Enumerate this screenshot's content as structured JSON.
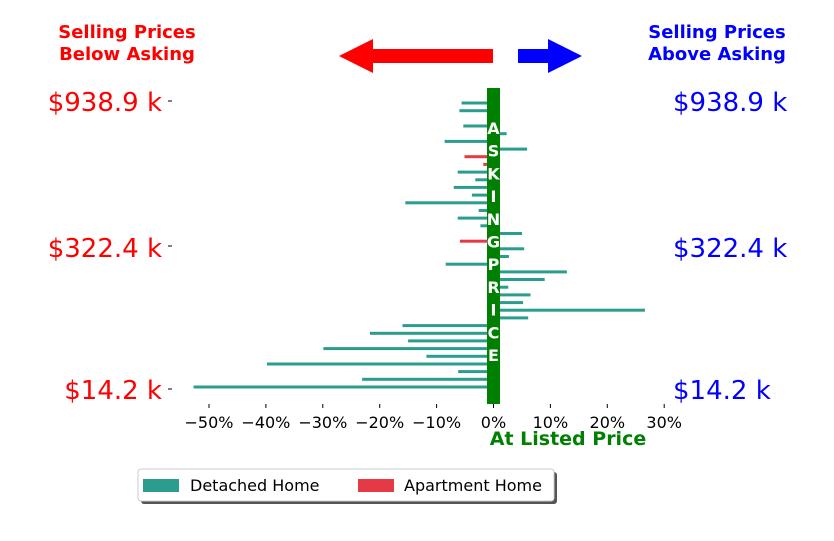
{
  "chart_data": {
    "type": "bar",
    "orientation": "horizontal",
    "header_left": [
      "Selling Prices",
      "Below Asking"
    ],
    "header_right": [
      "Selling Prices",
      "Above Asking"
    ],
    "center_label": "ASKING PRICE",
    "xlabel": "At Listed Price",
    "xlim": [
      -55,
      30
    ],
    "xticks": [
      -50,
      -40,
      -30,
      -20,
      -10,
      0,
      10,
      20,
      30
    ],
    "xtick_labels": [
      "−50%",
      "−40%",
      "−30%",
      "−20%",
      "−10%",
      "0%",
      "10%",
      "20%",
      "30%"
    ],
    "price_labels": [
      "$938.9 k",
      "$322.4 k",
      "$14.2 k"
    ],
    "legend": [
      "Detached Home",
      "Apartment Home"
    ],
    "legend_position": "bottom-left",
    "colors": {
      "detached": "#2a9d8f",
      "apartment": "#e63946",
      "asking": "#008000",
      "left": "#ff0000",
      "right": "#0000ff"
    },
    "bars": [
      {
        "type": "detached",
        "value": -5.6
      },
      {
        "type": "detached",
        "value": -6
      },
      {
        "type": "detached",
        "value": 0.5
      },
      {
        "type": "detached",
        "value": -5.3
      },
      {
        "type": "detached",
        "value": 2.3
      },
      {
        "type": "detached",
        "value": -8.6
      },
      {
        "type": "detached",
        "value": 5.9
      },
      {
        "type": "apartment",
        "value": -5.1
      },
      {
        "type": "apartment",
        "value": -1.8
      },
      {
        "type": "detached",
        "value": -6.3
      },
      {
        "type": "detached",
        "value": -3.2
      },
      {
        "type": "detached",
        "value": -7
      },
      {
        "type": "detached",
        "value": -3.8
      },
      {
        "type": "detached",
        "value": -15.5
      },
      {
        "type": "detached",
        "value": -2.6
      },
      {
        "type": "detached",
        "value": -6.3
      },
      {
        "type": "detached",
        "value": -2.3
      },
      {
        "type": "detached",
        "value": 5
      },
      {
        "type": "apartment",
        "value": -5.9
      },
      {
        "type": "detached",
        "value": 5.4
      },
      {
        "type": "detached",
        "value": 2.7
      },
      {
        "type": "detached",
        "value": -8.4
      },
      {
        "type": "detached",
        "value": 12.9
      },
      {
        "type": "detached",
        "value": 9
      },
      {
        "type": "detached",
        "value": 2.6
      },
      {
        "type": "detached",
        "value": 6.5
      },
      {
        "type": "detached",
        "value": 5.2
      },
      {
        "type": "detached",
        "value": 26.6
      },
      {
        "type": "detached",
        "value": 6.1
      },
      {
        "type": "detached",
        "value": -16
      },
      {
        "type": "detached",
        "value": -21.7
      },
      {
        "type": "detached",
        "value": -15
      },
      {
        "type": "detached",
        "value": -29.9
      },
      {
        "type": "detached",
        "value": -11.8
      },
      {
        "type": "detached",
        "value": -39.8
      },
      {
        "type": "detached",
        "value": -6.2
      },
      {
        "type": "detached",
        "value": -23.1
      },
      {
        "type": "detached",
        "value": -52.7
      }
    ]
  }
}
